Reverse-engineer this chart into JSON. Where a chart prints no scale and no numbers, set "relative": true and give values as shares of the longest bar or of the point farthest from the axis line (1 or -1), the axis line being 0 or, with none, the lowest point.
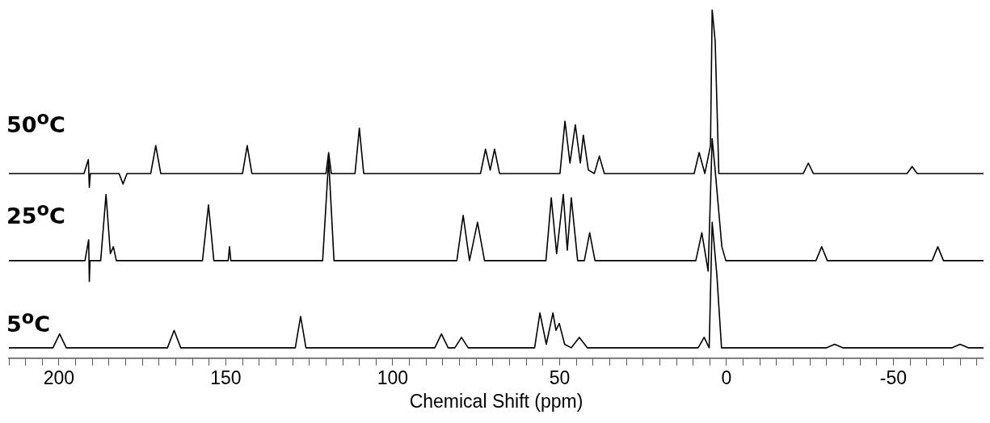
{
  "chart_data": {
    "type": "line",
    "relative": true,
    "xlim": [
      215,
      -77
    ],
    "xlabel": "Chemical Shift (ppm)",
    "xticks": [
      {
        "value": 215,
        "label": null
      },
      {
        "value": 210,
        "label": null
      },
      {
        "value": 205,
        "label": null
      },
      200,
      {
        "value": 195,
        "label": null
      },
      {
        "value": 190,
        "label": null
      },
      {
        "value": 185,
        "label": null
      },
      {
        "value": 180,
        "label": null
      },
      {
        "value": 175,
        "label": null
      },
      {
        "value": 170,
        "label": null
      },
      {
        "value": 165,
        "label": null
      },
      {
        "value": 160,
        "label": null
      },
      {
        "value": 155,
        "label": null
      },
      150,
      {
        "value": 145,
        "label": null
      },
      {
        "value": 140,
        "label": null
      },
      {
        "value": 135,
        "label": null
      },
      {
        "value": 130,
        "label": null
      },
      {
        "value": 125,
        "label": null
      },
      {
        "value": 120,
        "label": null
      },
      {
        "value": 115,
        "label": null
      },
      {
        "value": 110,
        "label": null
      },
      {
        "value": 105,
        "label": null
      },
      100,
      {
        "value": 95,
        "label": null
      },
      {
        "value": 90,
        "label": null
      },
      {
        "value": 85,
        "label": null
      },
      {
        "value": 80,
        "label": null
      },
      {
        "value": 75,
        "label": null
      },
      {
        "value": 70,
        "label": null
      },
      {
        "value": 65,
        "label": null
      },
      {
        "value": 60,
        "label": null
      },
      {
        "value": 55,
        "label": null
      },
      50,
      {
        "value": 45,
        "label": null
      },
      {
        "value": 40,
        "label": null
      },
      {
        "value": 35,
        "label": null
      },
      {
        "value": 30,
        "label": null
      },
      {
        "value": 25,
        "label": null
      },
      {
        "value": 20,
        "label": null
      },
      {
        "value": 15,
        "label": null
      },
      {
        "value": 10,
        "label": null
      },
      {
        "value": 5,
        "label": null
      },
      0,
      {
        "value": -5,
        "label": null
      },
      {
        "value": -10,
        "label": null
      },
      {
        "value": -15,
        "label": null
      },
      {
        "value": -20,
        "label": null
      },
      {
        "value": -25,
        "label": null
      },
      {
        "value": -30,
        "label": null
      },
      {
        "value": -35,
        "label": null
      },
      {
        "value": -40,
        "label": null
      },
      {
        "value": -45,
        "label": null
      },
      -50,
      {
        "value": -55,
        "label": null
      },
      {
        "value": -60,
        "label": null
      },
      {
        "value": -65,
        "label": null
      },
      {
        "value": -70,
        "label": null
      },
      {
        "value": -75,
        "label": null
      }
    ],
    "series": [
      {
        "name": "50$^{o}$C",
        "color": "#000000",
        "x": [
          215,
          192.5,
          191.2,
          190.9,
          190.6,
          189.3,
          182,
          180.8,
          179.6,
          172.5,
          171,
          169.5,
          145,
          143.6,
          142.2,
          120,
          119.2,
          118.4,
          111.3,
          110,
          108.7,
          73.7,
          72.2,
          70.8,
          69.5,
          68,
          49.9,
          48.4,
          46.9,
          45.3,
          43.8,
          42.9,
          41.4,
          39.6,
          38.1,
          36.6,
          9.7,
          8.2,
          6.5,
          4.8,
          4.3,
          3.4,
          2.3,
          -23,
          -24.5,
          -26,
          -54.1,
          -55.6,
          -57.1,
          -77
        ],
        "values": [
          0.53,
          0.53,
          0.57,
          0.49,
          0.53,
          0.53,
          0.53,
          0.5,
          0.53,
          0.53,
          0.61,
          0.53,
          0.53,
          0.61,
          0.53,
          0.53,
          0.59,
          0.53,
          0.53,
          0.66,
          0.53,
          0.53,
          0.6,
          0.54,
          0.6,
          0.53,
          0.53,
          0.68,
          0.56,
          0.67,
          0.56,
          0.64,
          0.54,
          0.53,
          0.58,
          0.53,
          0.53,
          0.59,
          0.53,
          0.61,
          1,
          0.91,
          0.53,
          0.53,
          0.56,
          0.53,
          0.53,
          0.55,
          0.53,
          0.53
        ]
      },
      {
        "name": "25$^{o}$C",
        "color": "#000000",
        "x": [
          215,
          192.2,
          191.1,
          190.9,
          190.7,
          189.6,
          187.5,
          185.9,
          184.6,
          183.7,
          182.8,
          157,
          155.2,
          153.6,
          149.3,
          148.9,
          148.5,
          121,
          119.2,
          117.6,
          80.8,
          78.9,
          77,
          74.6,
          72.5,
          54.1,
          52.5,
          50.9,
          48.9,
          47.7,
          46.5,
          44.6,
          42.6,
          41,
          39.4,
          9.2,
          7.4,
          5.5,
          4.3,
          3.5,
          1.4,
          0.2,
          -26.8,
          -28.5,
          -30.2,
          -61.6,
          -63.3,
          -65,
          -77
        ],
        "values": [
          0.28,
          0.28,
          0.34,
          0.22,
          0.28,
          0.28,
          0.28,
          0.47,
          0.3,
          0.32,
          0.28,
          0.28,
          0.44,
          0.28,
          0.28,
          0.32,
          0.28,
          0.28,
          0.57,
          0.28,
          0.28,
          0.41,
          0.28,
          0.39,
          0.28,
          0.28,
          0.46,
          0.3,
          0.47,
          0.31,
          0.46,
          0.28,
          0.28,
          0.36,
          0.28,
          0.28,
          0.36,
          0.25,
          0.63,
          0.55,
          0.32,
          0.28,
          0.28,
          0.32,
          0.28,
          0.28,
          0.32,
          0.28,
          0.28
        ]
      },
      {
        "name": "5$^{o}$C",
        "color": "#000000",
        "x": [
          215,
          201.8,
          199.8,
          197.8,
          167.5,
          165.5,
          163.5,
          129.2,
          127.6,
          126,
          87.4,
          85.4,
          83.4,
          81.4,
          79.4,
          77.4,
          57.5,
          55.9,
          54,
          52,
          51.1,
          50.1,
          48.5,
          46.5,
          44.1,
          41.7,
          8.5,
          6.7,
          5.2,
          4.3,
          2.9,
          1.5,
          -30,
          -32.4,
          -34.8,
          -67.6,
          -70,
          -72.4,
          -77
        ],
        "values": [
          0.03,
          0.03,
          0.07,
          0.03,
          0.03,
          0.08,
          0.03,
          0.03,
          0.12,
          0.03,
          0.03,
          0.07,
          0.03,
          0.03,
          0.06,
          0.03,
          0.03,
          0.13,
          0.04,
          0.13,
          0.08,
          0.1,
          0.04,
          0.03,
          0.06,
          0.03,
          0.03,
          0.06,
          0.03,
          0.39,
          0.24,
          0.03,
          0.03,
          0.04,
          0.03,
          0.03,
          0.04,
          0.03,
          0.03
        ]
      }
    ]
  }
}
